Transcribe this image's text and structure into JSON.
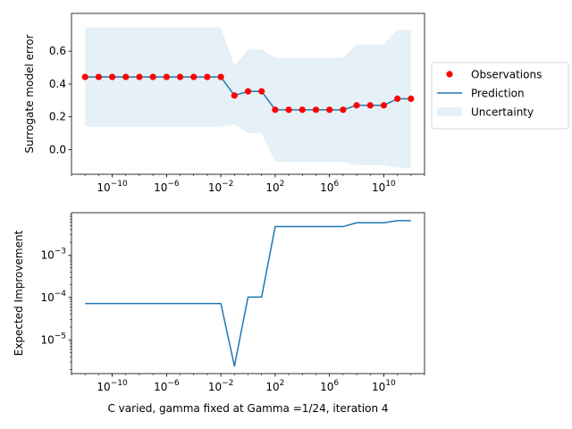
{
  "colors": {
    "prediction": "#1f77b4",
    "uncertainty": "#1f77b4",
    "observations": "#ff0000"
  },
  "chart_data": [
    {
      "type": "line",
      "xscale": "log",
      "ylabel": "Surrogate model error",
      "xlim": [
        1e-13,
        10000000000000.0
      ],
      "ylim": [
        -0.15,
        0.83
      ],
      "xticks": [
        {
          "value": 1e-10,
          "base": "10",
          "exp": "−10"
        },
        {
          "value": 1e-06,
          "base": "10",
          "exp": "−6"
        },
        {
          "value": 0.01,
          "base": "10",
          "exp": "−2"
        },
        {
          "value": 100.0,
          "base": "10",
          "exp": "2"
        },
        {
          "value": 1000000.0,
          "base": "10",
          "exp": "6"
        },
        {
          "value": 10000000000.0,
          "base": "10",
          "exp": "10"
        }
      ],
      "yticks": [
        {
          "value": 0.0,
          "label": "0.0"
        },
        {
          "value": 0.2,
          "label": "0.2"
        },
        {
          "value": 0.4,
          "label": "0.4"
        },
        {
          "value": 0.6,
          "label": "0.6"
        }
      ],
      "x": [
        1e-12,
        1e-11,
        1e-10,
        1e-09,
        1e-08,
        1e-07,
        1e-06,
        1e-05,
        0.0001,
        0.001,
        0.01,
        0.1,
        1.0,
        10.0,
        100.0,
        1000.0,
        10000.0,
        100000.0,
        1000000.0,
        10000000.0,
        100000000.0,
        1000000000.0,
        10000000000.0,
        100000000000.0,
        1000000000000.0
      ],
      "series": [
        {
          "name": "Observations",
          "kind": "scatter",
          "values": [
            0.443,
            0.443,
            0.443,
            0.443,
            0.443,
            0.443,
            0.443,
            0.443,
            0.443,
            0.443,
            0.443,
            0.33,
            0.355,
            0.355,
            0.243,
            0.243,
            0.243,
            0.243,
            0.243,
            0.243,
            0.27,
            0.27,
            0.27,
            0.31,
            0.31
          ]
        },
        {
          "name": "Prediction",
          "kind": "line",
          "values": [
            0.443,
            0.443,
            0.443,
            0.443,
            0.443,
            0.443,
            0.443,
            0.443,
            0.443,
            0.443,
            0.443,
            0.33,
            0.355,
            0.355,
            0.243,
            0.243,
            0.243,
            0.243,
            0.243,
            0.243,
            0.27,
            0.27,
            0.27,
            0.31,
            0.31
          ]
        },
        {
          "name": "Uncertainty",
          "kind": "band",
          "upper": [
            0.745,
            0.745,
            0.745,
            0.745,
            0.745,
            0.745,
            0.745,
            0.745,
            0.745,
            0.745,
            0.745,
            0.51,
            0.61,
            0.61,
            0.56,
            0.56,
            0.56,
            0.56,
            0.56,
            0.56,
            0.64,
            0.64,
            0.64,
            0.73,
            0.73
          ],
          "lower": [
            0.14,
            0.14,
            0.14,
            0.14,
            0.14,
            0.14,
            0.14,
            0.14,
            0.14,
            0.14,
            0.14,
            0.155,
            0.1,
            0.1,
            -0.075,
            -0.075,
            -0.075,
            -0.075,
            -0.075,
            -0.075,
            -0.095,
            -0.095,
            -0.095,
            -0.11,
            -0.11
          ]
        }
      ],
      "legend": {
        "placement": "right, outside",
        "entries": [
          {
            "label": "Observations",
            "kind": "marker"
          },
          {
            "label": "Prediction",
            "kind": "line"
          },
          {
            "label": "Uncertainty",
            "kind": "patch"
          }
        ]
      }
    },
    {
      "type": "line",
      "xscale": "log",
      "yscale": "log",
      "ylabel": "Expected Improvement",
      "xlabel": "C varied, gamma fixed at Gamma =1/24, iteration 4",
      "xlim": [
        1e-13,
        10000000000000.0
      ],
      "ylim": [
        1.6e-06,
        0.01
      ],
      "xticks": [
        {
          "value": 1e-10,
          "base": "10",
          "exp": "−10"
        },
        {
          "value": 1e-06,
          "base": "10",
          "exp": "−6"
        },
        {
          "value": 0.01,
          "base": "10",
          "exp": "−2"
        },
        {
          "value": 100.0,
          "base": "10",
          "exp": "2"
        },
        {
          "value": 1000000.0,
          "base": "10",
          "exp": "6"
        },
        {
          "value": 10000000000.0,
          "base": "10",
          "exp": "10"
        }
      ],
      "yticks": [
        {
          "value": 1e-05,
          "base": "10",
          "exp": "−5"
        },
        {
          "value": 0.0001,
          "base": "10",
          "exp": "−4"
        },
        {
          "value": 0.001,
          "base": "10",
          "exp": "−3"
        }
      ],
      "x": [
        1e-12,
        1e-11,
        1e-10,
        1e-09,
        1e-08,
        1e-07,
        1e-06,
        1e-05,
        0.0001,
        0.001,
        0.01,
        0.1,
        1.0,
        10.0,
        100.0,
        1000.0,
        10000.0,
        100000.0,
        1000000.0,
        10000000.0,
        100000000.0,
        1000000000.0,
        10000000000.0,
        100000000000.0,
        1000000000000.0
      ],
      "series": [
        {
          "name": "Expected Improvement",
          "kind": "line",
          "values": [
            7.2e-05,
            7.2e-05,
            7.2e-05,
            7.2e-05,
            7.2e-05,
            7.2e-05,
            7.2e-05,
            7.2e-05,
            7.2e-05,
            7.2e-05,
            7.2e-05,
            2.4e-06,
            0.000102,
            0.000102,
            0.0047,
            0.0047,
            0.0047,
            0.0047,
            0.0047,
            0.0047,
            0.0058,
            0.0058,
            0.0058,
            0.0065,
            0.0065
          ]
        }
      ]
    }
  ]
}
